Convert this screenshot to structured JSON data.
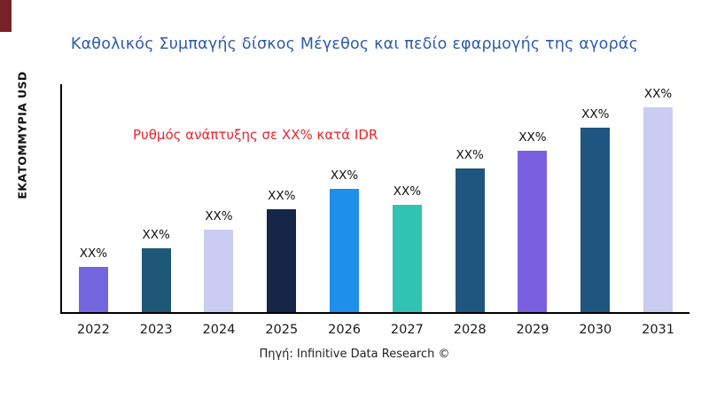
{
  "branding": {
    "corner_mark_color": "#7a2028"
  },
  "chart_data": {
    "type": "bar",
    "title": "Καθολικός Συμπαγής δίσκος Μέγεθος και πεδίο εφαρμογής της αγοράς",
    "title_color": "#2d5ca9",
    "ylabel": "ΕΚΑΤΟΜΜΥΡΙΑ USD",
    "xlabel": "",
    "annotation": "Ρυθμός ανάπτυξης σε XX% κατά IDR",
    "annotation_color": "#e8262d",
    "source": "Πηγή: Infinitive Data Research ©",
    "categories": [
      "2022",
      "2023",
      "2024",
      "2025",
      "2026",
      "2027",
      "2028",
      "2029",
      "2030",
      "2031"
    ],
    "values": [
      20,
      28,
      36,
      45,
      54,
      47,
      63,
      71,
      81,
      90
    ],
    "value_labels": [
      "XX%",
      "XX%",
      "XX%",
      "XX%",
      "XX%",
      "XX%",
      "XX%",
      "XX%",
      "XX%",
      "XX%"
    ],
    "bar_colors": [
      "#7466de",
      "#1e5878",
      "#c9cdf1",
      "#152647",
      "#1e8fea",
      "#30c3b3",
      "#1e567f",
      "#7a5fe0",
      "#1e567f",
      "#c9cdf1"
    ],
    "ylim": [
      0,
      100
    ],
    "grid": false,
    "legend": null,
    "y_tick_labels_shown": false
  }
}
